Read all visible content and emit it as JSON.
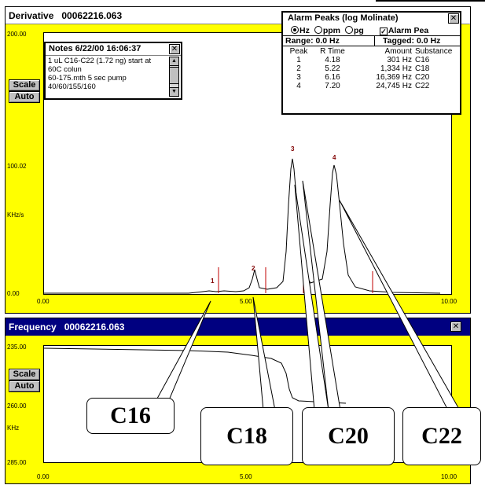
{
  "derivative": {
    "title": "Derivative",
    "file": "00062216.063",
    "y_ticks": [
      "200.00",
      "100.02",
      "0.00"
    ],
    "y_unit": "KHz/s",
    "x_ticks": [
      "0.00",
      "5.00",
      "10.00"
    ],
    "scale_label": "Scale",
    "auto_label": "Auto",
    "peak_labels": [
      "1",
      "2",
      "3",
      "4"
    ]
  },
  "notes": {
    "title": "Notes 6/22/00 16:06:37",
    "lines": [
      "1 uL C16-C22 (1.72 ng) start at",
      "60C colun",
      "60-175.mth 5 sec pump",
      "40/60/155/160"
    ]
  },
  "alarm": {
    "title": "Alarm Peaks (log Molinate)",
    "radio_hz": "Hz",
    "radio_ppm": "ppm",
    "radio_pg": "pg",
    "alarm_check": "Alarm Pea",
    "range": "Range: 0.0 Hz",
    "tagged": "Tagged: 0.0 Hz",
    "columns": [
      "Peak",
      "R Time",
      "Amount",
      "Substance"
    ],
    "rows": [
      [
        "1",
        "4.18",
        "301 Hz",
        "C16"
      ],
      [
        "2",
        "5.22",
        "1,334 Hz",
        "C18"
      ],
      [
        "3",
        "6.16",
        "16,369 Hz",
        "C20"
      ],
      [
        "4",
        "7.20",
        "24,745 Hz",
        "C22"
      ]
    ]
  },
  "frequency": {
    "title": "Frequency",
    "file": "00062216.063",
    "y_ticks": [
      "235.00",
      "260.00",
      "285.00"
    ],
    "y_unit": "KHz",
    "x_ticks": [
      "0.00",
      "5.00",
      "10.00"
    ],
    "scale_label": "Scale",
    "auto_label": "Auto"
  },
  "callouts": [
    "C16",
    "C18",
    "C20",
    "C22"
  ],
  "colors": {
    "plot_bg": "#ffff00",
    "active_title": "#000080",
    "peak_label": "#800000",
    "marker": "#c00000"
  }
}
